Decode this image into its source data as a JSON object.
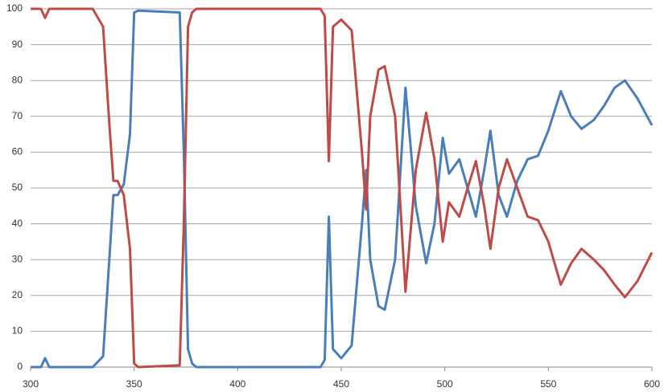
{
  "chart_data": {
    "type": "line",
    "x": [
      300,
      305,
      307,
      309,
      330,
      335,
      338,
      340,
      342,
      345,
      348,
      350,
      352,
      372,
      374,
      376,
      378,
      380,
      440,
      442,
      444,
      446,
      450,
      455,
      460,
      462,
      464,
      468,
      471,
      476,
      481,
      486,
      491,
      495,
      499,
      502,
      507,
      511,
      515,
      519,
      522,
      526,
      530,
      535,
      540,
      545,
      550,
      556,
      561,
      566,
      572,
      577,
      582,
      587,
      593,
      600
    ],
    "series": [
      {
        "color": "#4a7ebb",
        "values": [
          0,
          0,
          2.5,
          0,
          0,
          3,
          30,
          48,
          48,
          51,
          65,
          99,
          99.5,
          99,
          60,
          5,
          1,
          0,
          0,
          2,
          42,
          5,
          2.5,
          6,
          40,
          55,
          30,
          17,
          16,
          30,
          78,
          45,
          29,
          40,
          64,
          54,
          58,
          50,
          42,
          55,
          66,
          48,
          42,
          52,
          58,
          59,
          66,
          77,
          70,
          66.5,
          69,
          73,
          78,
          80,
          75,
          67.5
        ]
      },
      {
        "color": "#be4b48",
        "values": [
          100,
          100,
          97.5,
          100,
          100,
          95,
          68,
          52,
          52,
          48,
          33,
          1,
          0,
          0.5,
          40,
          95,
          99,
          100,
          100,
          98,
          57.5,
          95,
          97,
          94,
          60,
          44,
          70,
          83,
          84,
          70,
          21,
          55,
          71,
          58,
          35,
          46,
          42,
          50,
          57.5,
          45,
          33,
          50,
          58,
          50,
          42,
          41,
          35,
          23,
          29,
          33,
          30,
          27,
          23,
          19.5,
          24,
          32
        ]
      }
    ],
    "xlim": [
      300,
      600
    ],
    "xticks": [
      300,
      350,
      400,
      450,
      500,
      550,
      600
    ],
    "ylim": [
      0,
      100
    ],
    "yticks": [
      0,
      10,
      20,
      30,
      40,
      50,
      60,
      70,
      80,
      90,
      100
    ],
    "grid": true
  }
}
